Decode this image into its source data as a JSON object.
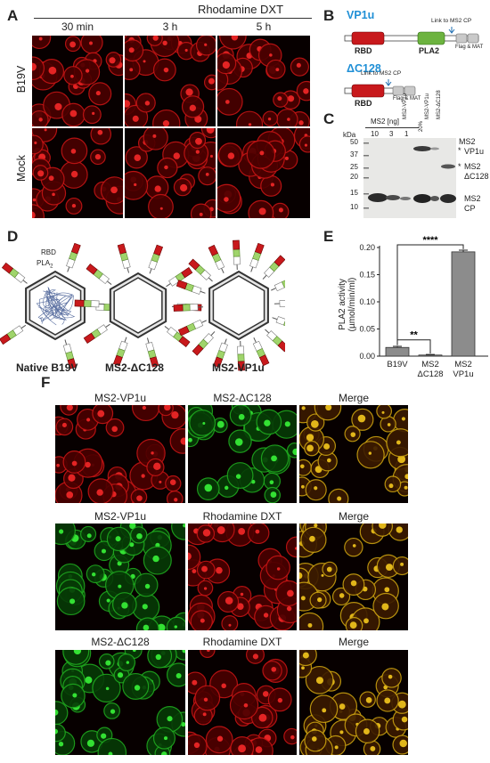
{
  "panels": {
    "a": "A",
    "b": "B",
    "c": "C",
    "d": "D",
    "e": "E",
    "f": "F"
  },
  "panelA": {
    "title": "Rhodamine DXT",
    "columns": [
      "30 min",
      "3 h",
      "5 h"
    ],
    "rows": [
      "B19V",
      "Mock"
    ]
  },
  "panelB": {
    "vp1u_title": "VP1u",
    "dc128_title": "ΔC128",
    "rbd": "RBD",
    "pla2": "PLA2",
    "link": "Link to MS2 CP",
    "flag": "Flag & MAT",
    "colors": {
      "rbd": "#c8191c",
      "pla2": "#6cb33f",
      "tag": "#c9c9c9",
      "title": "#1f8fd6"
    }
  },
  "panelC": {
    "header": "MS2 [ng]",
    "lane_labels": [
      "10",
      "3",
      "1",
      "MS2-VP1u",
      "20%",
      "MS2-VP1u",
      "MS2-ΔC128"
    ],
    "kda": "kDa",
    "markers": [
      "50",
      "37",
      "25",
      "20",
      "15",
      "10"
    ],
    "band_labels": [
      "MS2",
      "VP1u",
      "MS2",
      "ΔC128",
      "MS2",
      "CP"
    ],
    "star": "*"
  },
  "panelD": {
    "rbd": "RBD",
    "pla2": "PLA",
    "pla2_sub": "2",
    "labels": [
      "Native B19V",
      "MS2-ΔC128",
      "MS2-VP1u"
    ]
  },
  "panelE": {
    "ylabel_line1": "PLA2 activity",
    "ylabel_line2": "(µmol/min/ml)",
    "sig_top": "****",
    "sig_bottom": "**"
  },
  "panelF": {
    "rows": [
      [
        "MS2-VP1u",
        "MS2-ΔC128",
        "Merge"
      ],
      [
        "MS2-VP1u",
        "Rhodamine DXT",
        "Merge"
      ],
      [
        "MS2-ΔC128",
        "Rhodamine DXT",
        "Merge"
      ]
    ]
  },
  "chart_data": {
    "type": "bar",
    "categories": [
      "B19V",
      "MS2\nΔC128",
      "MS2\nVP1u"
    ],
    "values": [
      0.016,
      0.002,
      0.192
    ],
    "errors": [
      0.002,
      0.001,
      0.003
    ],
    "ylabel": "PLA2 activity (µmol/min/ml)",
    "ylim": [
      0,
      0.2
    ],
    "yticks": [
      "0.00",
      "0.05",
      "0.10",
      "0.15",
      "0.20"
    ],
    "significance": [
      {
        "pair": [
          "B19V",
          "MS2 VP1u"
        ],
        "label": "****"
      },
      {
        "pair": [
          "B19V",
          "MS2 ΔC128"
        ],
        "label": "**"
      }
    ],
    "bar_color": "#8c8c8c"
  }
}
